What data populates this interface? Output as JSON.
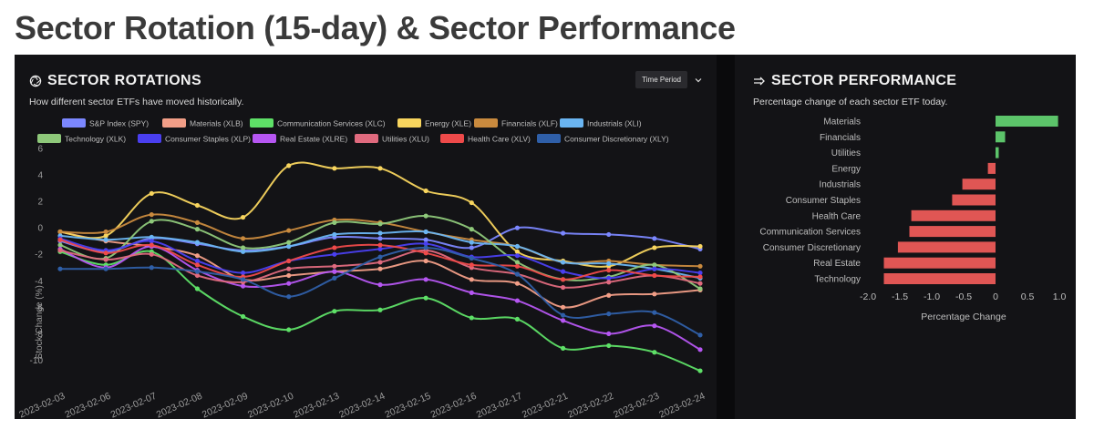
{
  "page": {
    "title": "Sector Rotation (15-day) & Sector Performance"
  },
  "rotations": {
    "title": "SECTOR ROTATIONS",
    "subtitle": "How different sector ETFs have moved historically.",
    "period_label": "Time Period",
    "icon": "aperture-icon"
  },
  "performance": {
    "title": "SECTOR PERFORMANCE",
    "subtitle": "Percentage change of each sector ETF today.",
    "icon": "trend-arrow-icon"
  },
  "colors": {
    "positive": "#5cc46a",
    "negative": "#e05654",
    "panel_bg": "#131316"
  },
  "chart_data": [
    {
      "type": "line",
      "title": "SECTOR ROTATIONS",
      "xlabel": "",
      "ylabel": "Stock Change (%)",
      "ylim": [
        -12,
        6
      ],
      "yticks": [
        6,
        4,
        2,
        0,
        -2,
        -4,
        -6,
        -8,
        -10
      ],
      "legend_position": "top",
      "x": [
        "2023-02-03",
        "2023-02-06",
        "2023-02-07",
        "2023-02-08",
        "2023-02-09",
        "2023-02-10",
        "2023-02-13",
        "2023-02-14",
        "2023-02-15",
        "2023-02-16",
        "2023-02-17",
        "2023-02-21",
        "2023-02-22",
        "2023-02-23",
        "2023-02-24"
      ],
      "series": [
        {
          "name": "S&P Index (SPY)",
          "color": "#7b87ff",
          "values": [
            -1.0,
            -1.8,
            -0.8,
            -1.2,
            -1.7,
            -1.4,
            -0.7,
            -0.8,
            -0.9,
            -1.5,
            0.0,
            -0.4,
            -0.5,
            -0.8,
            -1.6
          ]
        },
        {
          "name": "Materials (XLB)",
          "color": "#f29e87",
          "values": [
            -0.3,
            -1.0,
            -1.4,
            -2.1,
            -3.9,
            -3.6,
            -3.3,
            -3.1,
            -2.5,
            -3.9,
            -4.2,
            -6.0,
            -5.1,
            -5.0,
            -4.7
          ]
        },
        {
          "name": "Communication Services (XLC)",
          "color": "#5ee067",
          "values": [
            -1.8,
            -2.8,
            -1.8,
            -4.6,
            -6.7,
            -7.7,
            -6.3,
            -6.2,
            -5.3,
            -6.8,
            -6.9,
            -9.1,
            -8.9,
            -9.4,
            -10.8
          ]
        },
        {
          "name": "Energy (XLE)",
          "color": "#f8d55e",
          "values": [
            -0.3,
            -0.6,
            2.6,
            1.7,
            0.8,
            4.7,
            4.5,
            4.5,
            2.8,
            1.9,
            -1.8,
            -2.5,
            -2.9,
            -1.5,
            -1.4
          ]
        },
        {
          "name": "Financials (XLF)",
          "color": "#c98a3e",
          "values": [
            -0.3,
            -0.3,
            1.0,
            0.4,
            -0.8,
            -0.2,
            0.6,
            0.4,
            -0.3,
            -0.9,
            -1.4,
            -2.6,
            -2.5,
            -2.8,
            -2.9
          ]
        },
        {
          "name": "Industrials (XLI)",
          "color": "#6ab5f2",
          "values": [
            -0.6,
            -0.9,
            -0.7,
            -1.1,
            -1.8,
            -1.4,
            -0.5,
            -0.4,
            -0.3,
            -1.1,
            -1.4,
            -2.6,
            -2.7,
            -3.1,
            -3.8
          ]
        },
        {
          "name": "Technology (XLK)",
          "color": "#8ec87a",
          "values": [
            -1.3,
            -2.3,
            0.5,
            -0.1,
            -1.5,
            -1.1,
            0.4,
            0.3,
            0.9,
            -0.1,
            -2.6,
            -3.9,
            -3.7,
            -2.8,
            -4.6
          ]
        },
        {
          "name": "Consumer Staples (XLP)",
          "color": "#4a3ff0",
          "values": [
            -0.8,
            -1.7,
            -1.0,
            -2.5,
            -3.4,
            -2.5,
            -2.0,
            -1.6,
            -1.2,
            -2.2,
            -2.1,
            -3.3,
            -3.8,
            -3.1,
            -3.4
          ]
        },
        {
          "name": "Real Estate (XLRE)",
          "color": "#b656f2",
          "values": [
            -1.6,
            -3.0,
            -1.4,
            -3.2,
            -4.4,
            -4.2,
            -3.3,
            -4.3,
            -3.9,
            -4.9,
            -5.5,
            -7.0,
            -8.0,
            -7.4,
            -9.2
          ]
        },
        {
          "name": "Utilities (XLU)",
          "color": "#e06a7e",
          "values": [
            -1.7,
            -2.4,
            -2.0,
            -3.6,
            -4.1,
            -3.1,
            -2.9,
            -2.6,
            -1.7,
            -3.0,
            -3.5,
            -4.5,
            -4.1,
            -3.6,
            -4.2
          ]
        },
        {
          "name": "Health Care (XLV)",
          "color": "#ee4a4a",
          "values": [
            -0.9,
            -1.9,
            -1.3,
            -2.8,
            -3.7,
            -2.5,
            -1.5,
            -1.3,
            -1.9,
            -2.8,
            -2.9,
            -3.9,
            -3.2,
            -3.6,
            -3.7
          ]
        },
        {
          "name": "Consumer Discretionary (XLY)",
          "color": "#2f5fa8",
          "values": [
            -3.1,
            -3.1,
            -3.0,
            -3.3,
            -3.9,
            -5.2,
            -3.8,
            -2.2,
            -1.5,
            -2.3,
            -3.5,
            -6.6,
            -6.5,
            -6.4,
            -8.1
          ]
        }
      ]
    },
    {
      "type": "bar",
      "orientation": "horizontal",
      "title": "SECTOR PERFORMANCE",
      "xlabel": "Percentage Change",
      "xlim": [
        -2.0,
        1.0
      ],
      "xticks": [
        "-2.0",
        "-1.5",
        "-1.0",
        "-0.5",
        "0",
        "0.5",
        "1.0"
      ],
      "categories": [
        "Materials",
        "Financials",
        "Utilities",
        "Energy",
        "Industrials",
        "Consumer Staples",
        "Health Care",
        "Communication Services",
        "Consumer Discretionary",
        "Real Estate",
        "Technology"
      ],
      "values": [
        0.98,
        0.15,
        0.05,
        -0.12,
        -0.52,
        -0.68,
        -1.32,
        -1.35,
        -1.53,
        -1.75,
        -1.75
      ]
    }
  ]
}
